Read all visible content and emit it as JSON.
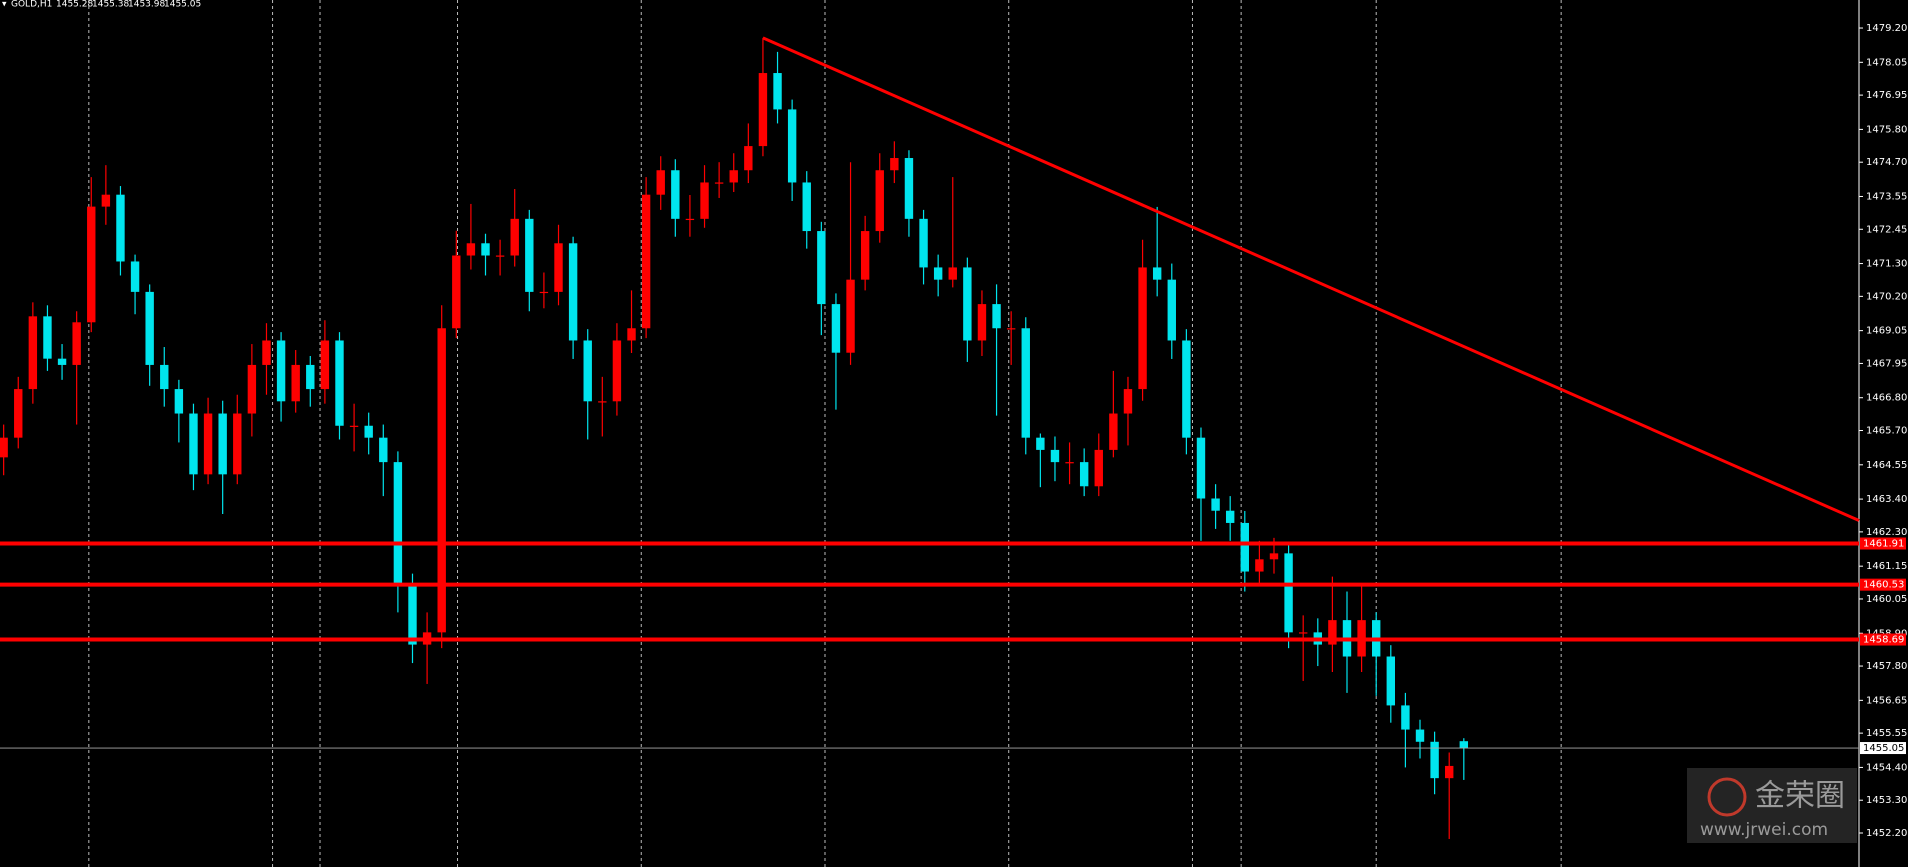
{
  "chart_data": {
    "type": "candlestick",
    "symbol": "GOLD,H1",
    "open": [
      1464.8,
      1465.46,
      1467.09,
      1469.53,
      1468.11,
      1467.9,
      1469.33,
      1473.21,
      1473.61,
      1471.37,
      1470.35,
      1467.9,
      1467.09,
      1466.27,
      1464.23,
      1466.27,
      1464.23,
      1466.27,
      1467.9,
      1468.72,
      1466.68,
      1467.9,
      1467.09,
      1468.72,
      1465.86,
      1465.86,
      1465.46,
      1464.64,
      1460.56,
      1458.52,
      1458.93,
      1469.13,
      1471.57,
      1471.98,
      1471.57,
      1471.57,
      1472.8,
      1470.35,
      1470.35,
      1471.98,
      1468.72,
      1466.68,
      1466.68,
      1468.72,
      1469.13,
      1473.61,
      1474.43,
      1472.8,
      1472.8,
      1474.02,
      1474.02,
      1474.43,
      1475.24,
      1477.69,
      1476.47,
      1474.02,
      1472.39,
      1469.94,
      1468.31,
      1470.76,
      1472.39,
      1474.43,
      1474.84,
      1472.8,
      1471.17,
      1470.76,
      1471.17,
      1468.72,
      1469.94,
      1469.13,
      1469.13,
      1465.46,
      1465.05,
      1464.64,
      1464.64,
      1463.83,
      1465.05,
      1466.27,
      1467.09,
      1471.17,
      1470.76,
      1468.72,
      1465.46,
      1463.42,
      1463.01,
      1462.6,
      1460.97,
      1461.38,
      1461.58,
      1458.93,
      1458.93,
      1458.52,
      1459.34,
      1458.12,
      1459.34,
      1458.12,
      1456.48,
      1455.67,
      1455.26,
      1454.04,
      1455.28
    ],
    "high": [
      1465.9,
      1467.5,
      1470.0,
      1469.9,
      1468.6,
      1469.7,
      1474.2,
      1474.6,
      1473.9,
      1471.6,
      1470.6,
      1468.5,
      1467.4,
      1466.6,
      1466.8,
      1466.7,
      1466.9,
      1468.6,
      1469.3,
      1469.0,
      1468.4,
      1468.2,
      1469.4,
      1469.0,
      1466.6,
      1466.3,
      1465.9,
      1465.0,
      1460.9,
      1459.6,
      1469.9,
      1472.4,
      1473.3,
      1472.3,
      1472.1,
      1473.8,
      1473.1,
      1471.0,
      1472.6,
      1472.2,
      1469.1,
      1467.5,
      1469.3,
      1470.4,
      1474.2,
      1474.9,
      1474.8,
      1473.6,
      1474.6,
      1474.7,
      1475.0,
      1476.0,
      1478.87,
      1478.4,
      1476.8,
      1474.4,
      1472.7,
      1470.3,
      1474.7,
      1472.9,
      1475.0,
      1475.4,
      1475.1,
      1473.1,
      1471.6,
      1474.2,
      1471.5,
      1470.4,
      1470.6,
      1469.7,
      1469.5,
      1465.6,
      1465.5,
      1465.3,
      1465.1,
      1465.6,
      1467.7,
      1467.5,
      1472.1,
      1473.2,
      1471.3,
      1469.1,
      1465.8,
      1463.9,
      1463.5,
      1463.0,
      1462.0,
      1462.1,
      1461.9,
      1459.5,
      1459.4,
      1460.8,
      1460.3,
      1460.5,
      1459.6,
      1458.5,
      1456.9,
      1456.0,
      1455.6,
      1454.9,
      1455.38
    ],
    "low": [
      1464.2,
      1465.1,
      1466.6,
      1467.7,
      1467.4,
      1465.9,
      1469.0,
      1472.6,
      1470.9,
      1469.6,
      1467.2,
      1466.5,
      1465.3,
      1463.7,
      1463.9,
      1462.9,
      1463.9,
      1465.5,
      1466.9,
      1466.0,
      1466.3,
      1466.5,
      1466.6,
      1465.4,
      1465.0,
      1464.9,
      1463.5,
      1459.6,
      1457.9,
      1457.2,
      1458.4,
      1468.8,
      1471.1,
      1470.9,
      1470.9,
      1471.2,
      1469.7,
      1469.8,
      1469.9,
      1468.1,
      1465.4,
      1465.5,
      1466.2,
      1468.3,
      1468.8,
      1473.1,
      1472.2,
      1472.2,
      1472.5,
      1473.5,
      1473.7,
      1474.0,
      1474.9,
      1476.0,
      1473.4,
      1471.8,
      1468.9,
      1466.4,
      1467.9,
      1470.4,
      1472.0,
      1474.0,
      1472.2,
      1470.6,
      1470.2,
      1470.5,
      1468.0,
      1468.2,
      1466.2,
      1467.9,
      1464.9,
      1463.8,
      1464.0,
      1463.9,
      1463.5,
      1463.5,
      1464.8,
      1465.2,
      1466.7,
      1470.2,
      1468.1,
      1464.9,
      1462.0,
      1462.4,
      1462.0,
      1460.3,
      1460.5,
      1460.9,
      1458.4,
      1457.3,
      1457.8,
      1457.6,
      1456.9,
      1457.6,
      1456.8,
      1455.9,
      1454.4,
      1454.7,
      1453.5,
      1452.0,
      1453.98
    ],
    "close": [
      1465.46,
      1467.09,
      1469.53,
      1468.11,
      1467.9,
      1469.33,
      1473.21,
      1473.61,
      1471.37,
      1470.35,
      1467.9,
      1467.09,
      1466.27,
      1464.23,
      1466.27,
      1464.23,
      1466.27,
      1467.9,
      1468.72,
      1466.68,
      1467.9,
      1467.09,
      1468.72,
      1465.86,
      1465.86,
      1465.46,
      1464.64,
      1460.56,
      1458.52,
      1458.93,
      1469.13,
      1471.57,
      1471.98,
      1471.57,
      1471.57,
      1472.8,
      1470.35,
      1470.35,
      1471.98,
      1468.72,
      1466.68,
      1466.68,
      1468.72,
      1469.13,
      1473.61,
      1474.43,
      1472.8,
      1472.8,
      1474.02,
      1474.02,
      1474.43,
      1475.24,
      1477.69,
      1476.47,
      1474.02,
      1472.39,
      1469.94,
      1468.31,
      1470.76,
      1472.39,
      1474.43,
      1474.84,
      1472.8,
      1471.17,
      1470.76,
      1471.17,
      1468.72,
      1469.94,
      1469.13,
      1469.13,
      1465.46,
      1465.05,
      1464.64,
      1464.64,
      1463.83,
      1465.05,
      1466.27,
      1467.09,
      1471.17,
      1470.76,
      1468.72,
      1465.46,
      1463.42,
      1463.01,
      1462.6,
      1460.97,
      1461.38,
      1461.58,
      1458.93,
      1458.93,
      1458.52,
      1459.34,
      1458.12,
      1459.34,
      1458.12,
      1456.48,
      1455.67,
      1455.26,
      1454.04,
      1454.45,
      1455.05
    ],
    "up_color": "#ff0000",
    "down_color": "#00e5ee",
    "ylim": [
      1451.06,
      1480.14
    ],
    "yticks": [
      {
        "value": 1479.2,
        "label": "1479.20"
      },
      1478.05,
      1476.95,
      {
        "value": 1475.8,
        "label": "1475.80"
      },
      {
        "value": 1474.7,
        "label": "1474.70"
      },
      1473.55,
      1472.45,
      {
        "value": 1471.3,
        "label": "1471.30"
      },
      {
        "value": 1470.2,
        "label": "1470.20"
      },
      1469.05,
      1467.95,
      {
        "value": 1466.8,
        "label": "1466.80"
      },
      {
        "value": 1465.7,
        "label": "1465.70"
      },
      1464.55,
      {
        "value": 1463.4,
        "label": "1463.40"
      },
      {
        "value": 1462.3,
        "label": "1462.30"
      },
      1461.15,
      1460.05,
      {
        "value": 1458.9,
        "label": "1458.90"
      },
      {
        "value": 1457.8,
        "label": "1457.80"
      },
      1456.65,
      1455.55,
      {
        "value": 1454.4,
        "label": "1454.40"
      },
      {
        "value": 1453.3,
        "label": "1453.30"
      },
      {
        "value": 1452.2,
        "label": "1452.20"
      }
    ],
    "levels": [
      1461.91,
      1460.53,
      1458.69
    ],
    "level_color": "#ff0000",
    "trendline": [
      1478.87,
      1462.68
    ]
  },
  "watermark": {
    "name": "金荣圈",
    "url": "www.jrwei.com"
  }
}
